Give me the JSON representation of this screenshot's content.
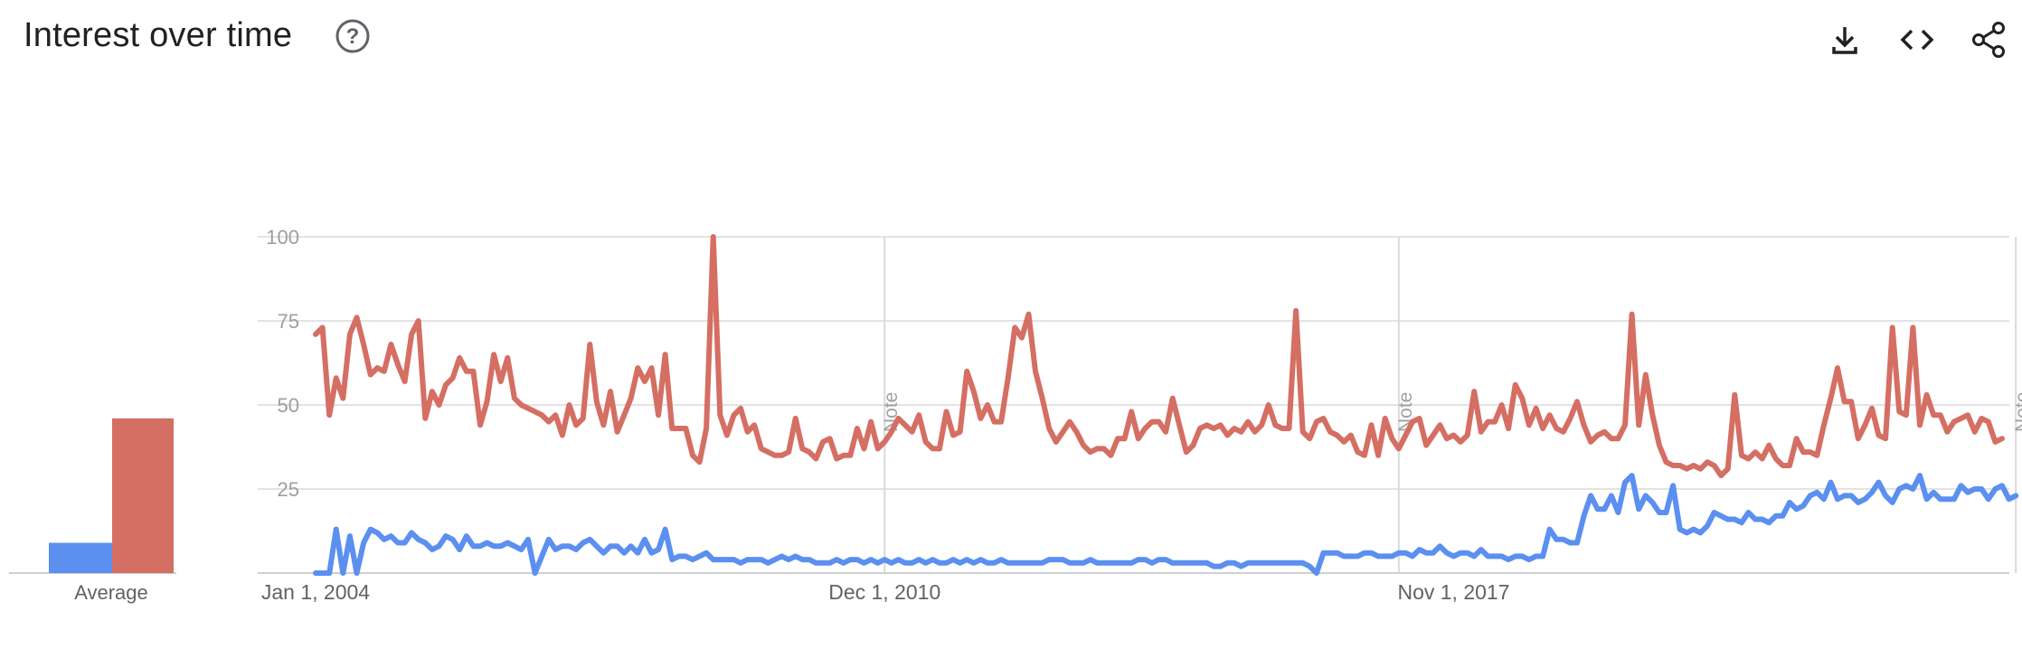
{
  "header": {
    "title": "Interest over time",
    "help_icon": "help-circle-icon",
    "actions": [
      {
        "name": "download",
        "icon": "download-icon"
      },
      {
        "name": "embed",
        "icon": "code-icon"
      },
      {
        "name": "share",
        "icon": "share-icon"
      }
    ]
  },
  "chart_data": {
    "type": "line",
    "x_labels": [
      "Jan 1, 2004",
      "Dec 1, 2010",
      "Nov 1, 2017"
    ],
    "ylim": [
      0,
      100
    ],
    "yticks": [
      25,
      50,
      75,
      100
    ],
    "grid": true,
    "notes": [
      {
        "label": "Note",
        "month_index": 83
      },
      {
        "label": "Note",
        "month_index": 158
      },
      {
        "label": "Note",
        "month_index": 248
      }
    ],
    "series": [
      {
        "color": "#d56e63",
        "average": 46,
        "values": [
          71,
          73,
          47,
          58,
          52,
          71,
          76,
          68,
          59,
          61,
          60,
          68,
          62,
          57,
          71,
          75,
          46,
          54,
          50,
          56,
          58,
          64,
          60,
          60,
          44,
          51,
          65,
          57,
          64,
          52,
          50,
          49,
          48,
          47,
          45,
          47,
          41,
          50,
          44,
          46,
          68,
          51,
          44,
          54,
          42,
          47,
          52,
          61,
          57,
          61,
          47,
          65,
          43,
          43,
          43,
          35,
          33,
          43,
          100,
          47,
          41,
          47,
          49,
          42,
          44,
          37,
          36,
          35,
          35,
          36,
          46,
          37,
          36,
          34,
          39,
          40,
          34,
          35,
          35,
          43,
          37,
          45,
          37,
          39,
          42,
          46,
          44,
          42,
          47,
          39,
          37,
          37,
          48,
          41,
          42,
          60,
          54,
          46,
          50,
          45,
          45,
          58,
          73,
          70,
          77,
          60,
          52,
          43,
          39,
          42,
          45,
          42,
          38,
          36,
          37,
          37,
          35,
          40,
          40,
          48,
          40,
          43,
          45,
          45,
          42,
          52,
          44,
          36,
          38,
          43,
          44,
          43,
          44,
          41,
          43,
          42,
          45,
          42,
          44,
          50,
          44,
          43,
          43,
          78,
          42,
          40,
          45,
          46,
          42,
          41,
          39,
          41,
          36,
          35,
          44,
          35,
          46,
          40,
          37,
          41,
          45,
          46,
          38,
          41,
          44,
          40,
          41,
          39,
          41,
          54,
          42,
          45,
          45,
          50,
          43,
          56,
          52,
          44,
          49,
          43,
          47,
          43,
          42,
          46,
          51,
          44,
          39,
          41,
          42,
          40,
          40,
          44,
          77,
          44,
          59,
          47,
          38,
          33,
          32,
          32,
          31,
          32,
          31,
          33,
          32,
          29,
          31,
          53,
          35,
          34,
          36,
          34,
          38,
          34,
          32,
          32,
          40,
          36,
          36,
          35,
          44,
          52,
          61,
          51,
          51,
          40,
          44,
          49,
          41,
          40,
          73,
          48,
          47,
          73,
          44,
          53,
          47,
          47,
          42,
          45,
          46,
          47,
          42,
          46,
          45,
          39,
          40
        ],
        "notes_label": "Note"
      },
      {
        "color": "#5b8ff0",
        "average": 9,
        "values": [
          0,
          0,
          0,
          13,
          0,
          11,
          0,
          9,
          13,
          12,
          10,
          11,
          9,
          9,
          12,
          10,
          9,
          7,
          8,
          11,
          10,
          7,
          11,
          8,
          8,
          9,
          8,
          8,
          9,
          8,
          7,
          10,
          0,
          5,
          10,
          7,
          8,
          8,
          7,
          9,
          10,
          8,
          6,
          8,
          8,
          6,
          8,
          6,
          10,
          6,
          7,
          13,
          4,
          5,
          5,
          4,
          5,
          6,
          4,
          4,
          4,
          4,
          3,
          4,
          4,
          4,
          3,
          4,
          5,
          4,
          5,
          4,
          4,
          3,
          3,
          3,
          4,
          3,
          4,
          4,
          3,
          4,
          3,
          4,
          3,
          4,
          3,
          3,
          4,
          3,
          4,
          3,
          3,
          4,
          3,
          4,
          3,
          4,
          3,
          3,
          4,
          3,
          3,
          3,
          3,
          3,
          3,
          4,
          4,
          4,
          3,
          3,
          3,
          4,
          3,
          3,
          3,
          3,
          3,
          3,
          4,
          4,
          3,
          4,
          4,
          3,
          3,
          3,
          3,
          3,
          3,
          2,
          2,
          3,
          3,
          2,
          3,
          3,
          3,
          3,
          3,
          3,
          3,
          3,
          3,
          2,
          0,
          6,
          6,
          6,
          5,
          5,
          5,
          6,
          6,
          5,
          5,
          5,
          6,
          6,
          5,
          7,
          6,
          6,
          8,
          6,
          5,
          6,
          6,
          5,
          7,
          5,
          5,
          5,
          4,
          5,
          5,
          4,
          5,
          5,
          13,
          10,
          10,
          9,
          9,
          17,
          23,
          19,
          19,
          23,
          18,
          27,
          29,
          19,
          23,
          21,
          18,
          18,
          26,
          13,
          12,
          13,
          12,
          14,
          18,
          17,
          16,
          16,
          15,
          18,
          16,
          16,
          15,
          17,
          17,
          21,
          19,
          20,
          23,
          24,
          22,
          27,
          22,
          23,
          23,
          21,
          22,
          24,
          27,
          23,
          21,
          25,
          26,
          25,
          29,
          22,
          24,
          22,
          22,
          22,
          26,
          24,
          25,
          25,
          22,
          25,
          26,
          22,
          23
        ]
      }
    ]
  },
  "average_label": "Average"
}
